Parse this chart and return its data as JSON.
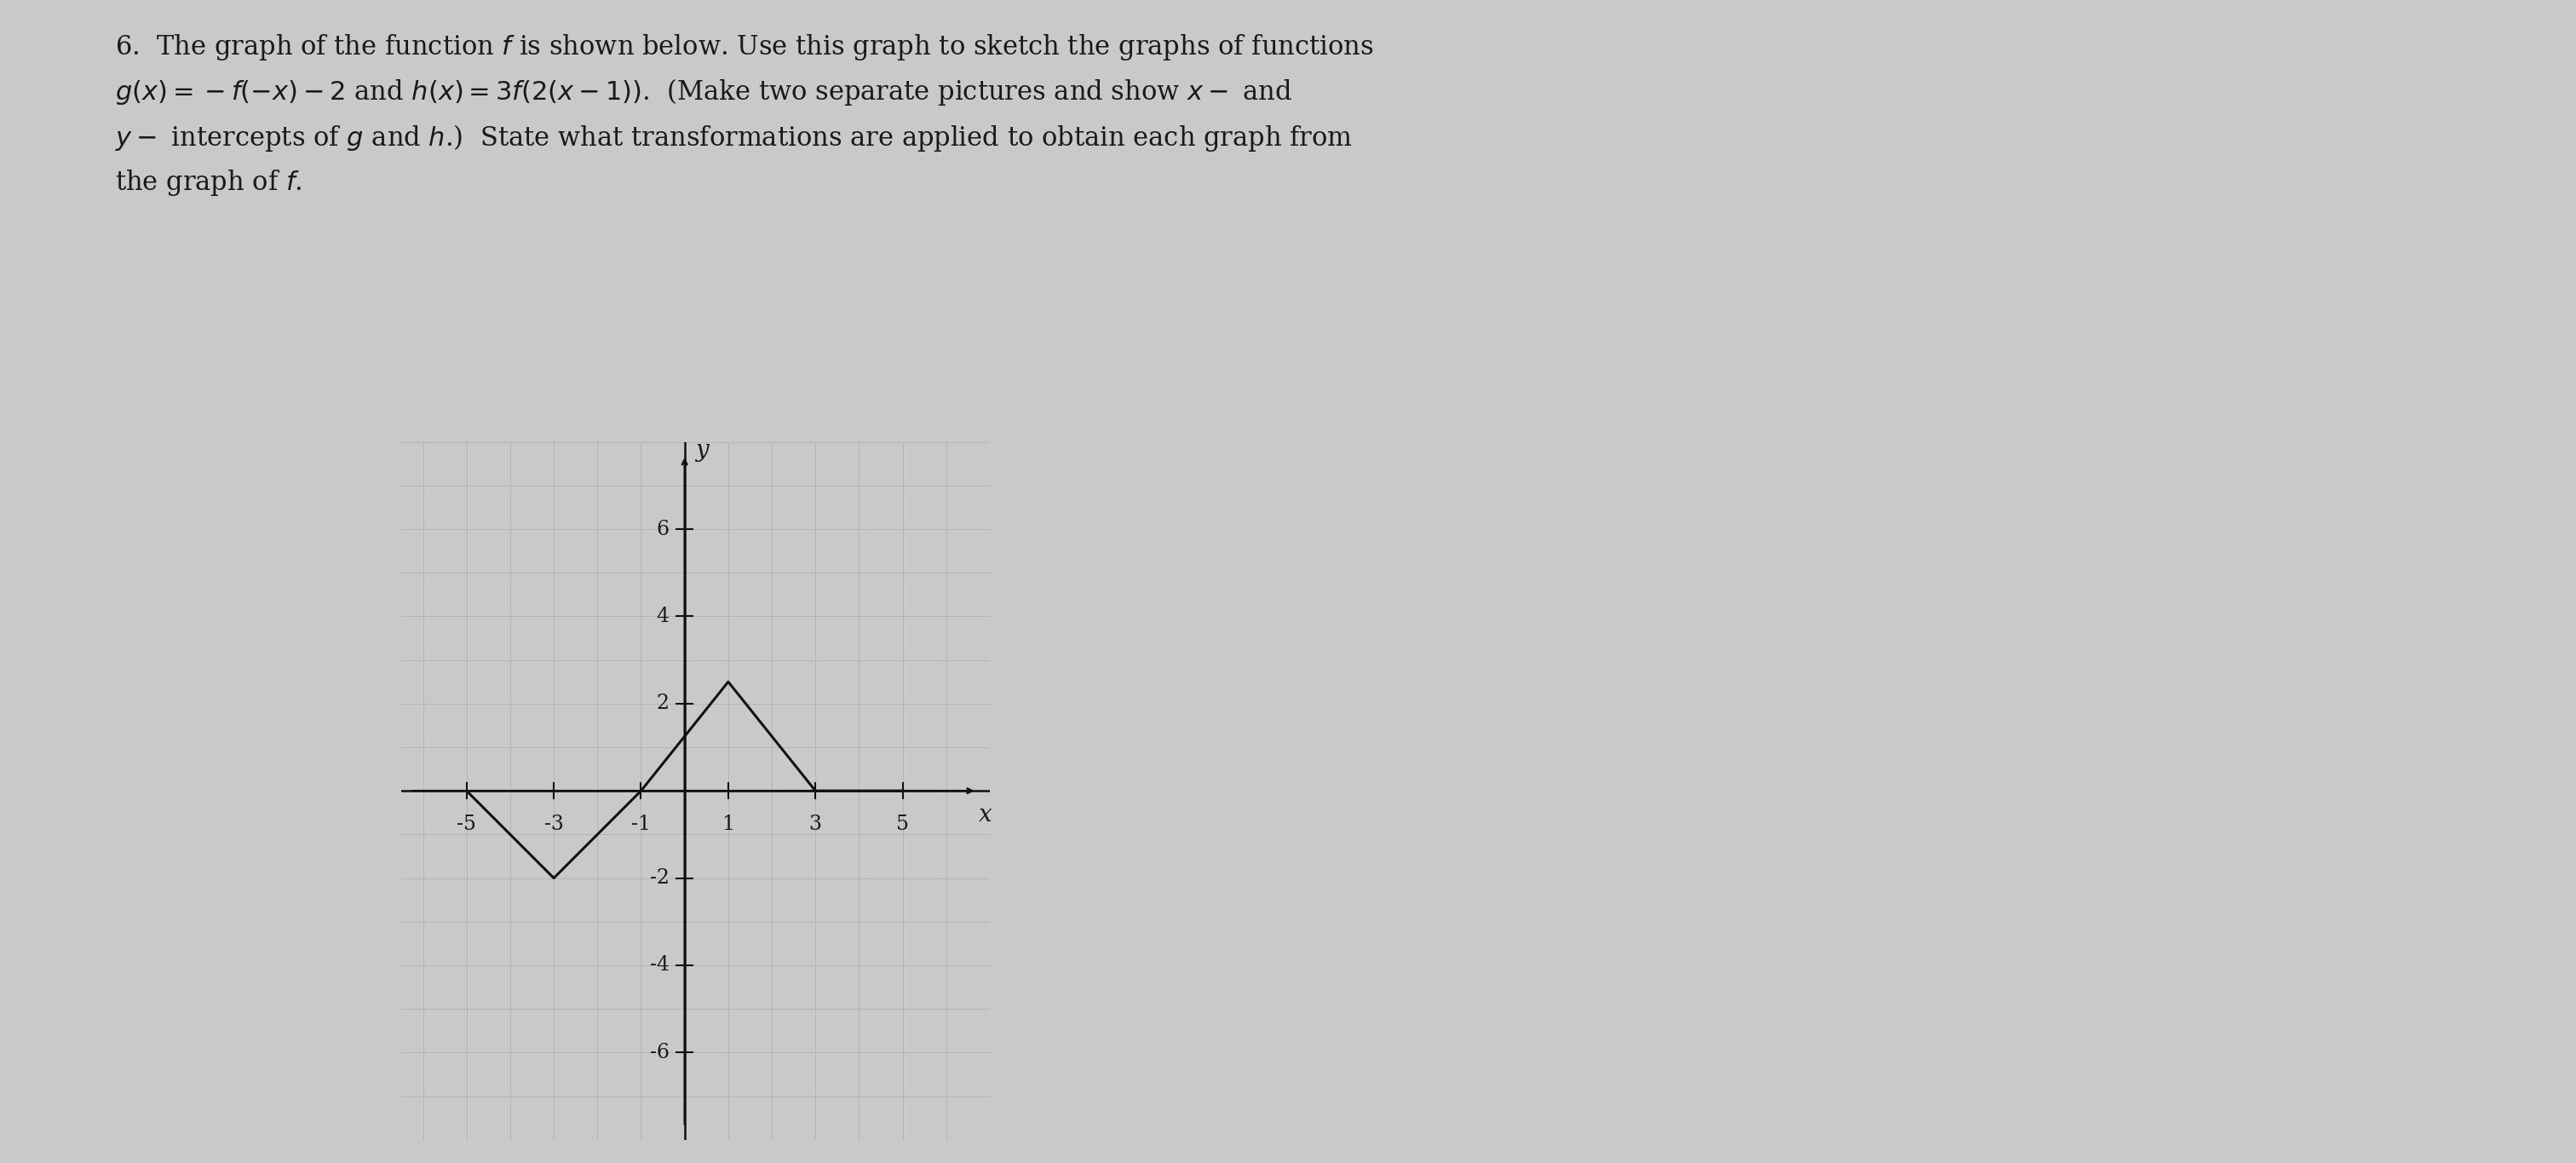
{
  "background_color": "#c9c9c9",
  "text_color": "#1a1a1a",
  "graph_xlim": [
    -6.5,
    7.0
  ],
  "graph_ylim": [
    -8.0,
    8.0
  ],
  "xticks": [
    -5,
    -3,
    -1,
    1,
    3,
    5
  ],
  "yticks": [
    -6,
    -4,
    -2,
    2,
    4,
    6
  ],
  "xlabel": "x",
  "ylabel": "y",
  "segments_x": [
    -5,
    -3,
    -1,
    1,
    3,
    5
  ],
  "segments_y": [
    0,
    -2,
    0,
    2.5,
    0,
    0
  ],
  "line_color": "#111111",
  "line_width": 2.2,
  "axis_color": "#111111",
  "grid_color": "#b0b0b0",
  "font_size_text": 22,
  "font_size_tick": 17,
  "font_size_axlabel": 20
}
